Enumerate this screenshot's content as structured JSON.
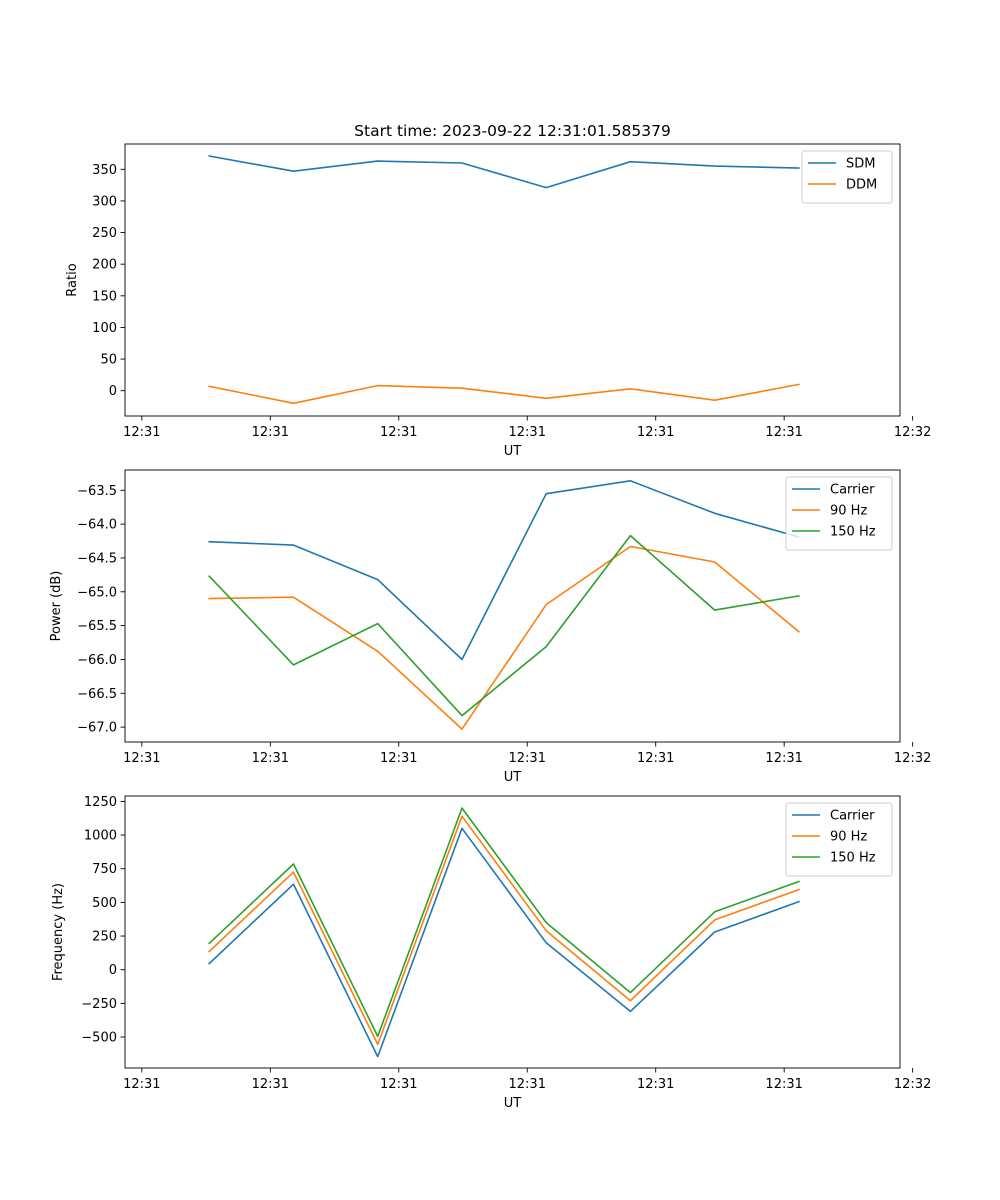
{
  "figure_title": "Start time: 2023-09-22 12:31:01.585379",
  "colors": {
    "blue": "#1f77b4",
    "orange": "#ff7f0e",
    "green": "#2ca02c"
  },
  "chart_data": [
    {
      "type": "line",
      "title": "Start time: 2023-09-22 12:31:01.585379",
      "xlabel": "UT",
      "ylabel": "Ratio",
      "x": [
        1,
        2,
        3,
        4,
        5,
        6,
        7,
        8
      ],
      "xlim": [
        0,
        9.2
      ],
      "x_ticks": [
        0.2,
        1.725,
        3.25,
        4.775,
        6.3,
        7.825,
        9.35
      ],
      "x_tick_labels": [
        "12:31",
        "12:31",
        "12:31",
        "12:31",
        "12:31",
        "12:31",
        "12:32"
      ],
      "ylim": [
        -40,
        390
      ],
      "y_ticks": [
        0,
        50,
        100,
        150,
        200,
        250,
        300,
        350
      ],
      "y_tick_labels": [
        "0",
        "50",
        "100",
        "150",
        "200",
        "250",
        "300",
        "350"
      ],
      "legend": "top-right",
      "series": [
        {
          "name": "SDM",
          "color": "#1f77b4",
          "values": [
            371,
            347,
            363,
            360,
            321,
            362,
            355,
            352
          ]
        },
        {
          "name": "DDM",
          "color": "#ff7f0e",
          "values": [
            7,
            -20,
            8,
            4,
            -12,
            3,
            -15,
            10
          ]
        }
      ]
    },
    {
      "type": "line",
      "title": "",
      "xlabel": "UT",
      "ylabel": "Power (dB)",
      "x": [
        1,
        2,
        3,
        4,
        5,
        6,
        7,
        8
      ],
      "xlim": [
        0,
        9.2
      ],
      "x_ticks": [
        0.2,
        1.725,
        3.25,
        4.775,
        6.3,
        7.825,
        9.35
      ],
      "x_tick_labels": [
        "12:31",
        "12:31",
        "12:31",
        "12:31",
        "12:31",
        "12:31",
        "12:32"
      ],
      "ylim": [
        -67.22,
        -63.2
      ],
      "y_ticks": [
        -63.5,
        -64.0,
        -64.5,
        -65.0,
        -65.5,
        -66.0,
        -66.5,
        -67.0
      ],
      "y_tick_labels": [
        "−63.5",
        "−64.0",
        "−64.5",
        "−65.0",
        "−65.5",
        "−66.0",
        "−66.5",
        "−67.0"
      ],
      "legend": "top-right",
      "series": [
        {
          "name": "Carrier",
          "color": "#1f77b4",
          "values": [
            -64.26,
            -64.31,
            -64.82,
            -66.0,
            -63.55,
            -63.36,
            -63.84,
            -64.19
          ]
        },
        {
          "name": "90 Hz",
          "color": "#ff7f0e",
          "values": [
            -65.1,
            -65.08,
            -65.88,
            -67.03,
            -65.19,
            -64.33,
            -64.56,
            -65.59
          ]
        },
        {
          "name": "150 Hz",
          "color": "#2ca02c",
          "values": [
            -64.77,
            -66.08,
            -65.47,
            -66.83,
            -65.81,
            -64.17,
            -65.27,
            -65.06
          ]
        }
      ]
    },
    {
      "type": "line",
      "title": "",
      "xlabel": "UT",
      "ylabel": "Frequency (Hz)",
      "x": [
        1,
        2,
        3,
        4,
        5,
        6,
        7,
        8
      ],
      "xlim": [
        0,
        9.2
      ],
      "x_ticks": [
        0.2,
        1.725,
        3.25,
        4.775,
        6.3,
        7.825,
        9.35
      ],
      "x_tick_labels": [
        "12:31",
        "12:31",
        "12:31",
        "12:31",
        "12:31",
        "12:31",
        "12:32"
      ],
      "ylim": [
        -730,
        1290
      ],
      "y_ticks": [
        -500,
        -250,
        0,
        250,
        500,
        750,
        1000,
        1250
      ],
      "y_tick_labels": [
        "−500",
        "−250",
        "0",
        "250",
        "500",
        "750",
        "1000",
        "1250"
      ],
      "legend": "top-right",
      "series": [
        {
          "name": "Carrier",
          "color": "#1f77b4",
          "values": [
            45,
            635,
            -645,
            1050,
            200,
            -310,
            280,
            505
          ]
        },
        {
          "name": "90 Hz",
          "color": "#ff7f0e",
          "values": [
            135,
            725,
            -555,
            1140,
            290,
            -230,
            370,
            595
          ]
        },
        {
          "name": "150 Hz",
          "color": "#2ca02c",
          "values": [
            195,
            785,
            -495,
            1200,
            350,
            -170,
            430,
            655
          ]
        }
      ]
    }
  ]
}
